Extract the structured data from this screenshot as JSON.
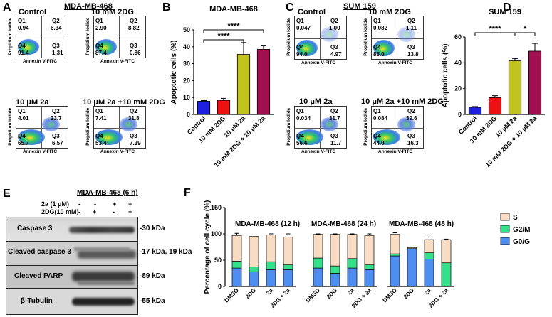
{
  "panel_letters": {
    "a": "A",
    "b": "B",
    "c": "C",
    "d": "D",
    "e": "E",
    "f": "F"
  },
  "flow": {
    "mdamb468": {
      "title": "MDA-MB-468",
      "x_label": "Annexin V-FITC",
      "y_label": "Propidium Iodide",
      "plots": [
        {
          "name": "Control",
          "q1": "0.94",
          "q2": "6.34",
          "q3": "1.31",
          "q4": "91.4",
          "q1_label": "Q1",
          "q2_label": "Q2",
          "q3_label": "Q3",
          "q4_label": "Q4"
        },
        {
          "name": "10 mM 2DG",
          "q1": "2.90",
          "q2": "8.82",
          "q3": "0.86",
          "q4": "87.4",
          "q1_label": "Q1",
          "q2_label": "Q2",
          "q3_label": "Q3",
          "q4_label": "Q4"
        },
        {
          "name": "10 μM 2a",
          "q1": "4.01",
          "q2": "23.7",
          "q3": "6.57",
          "q4": "65.7",
          "q1_label": "Q1",
          "q2_label": "Q2",
          "q3_label": "Q3",
          "q4_label": "Q4"
        },
        {
          "name": "10 μM 2a +10 mM 2DG",
          "q1": "7.41",
          "q2": "31.8",
          "q3": "7.39",
          "q4": "53.4",
          "q1_label": "Q1",
          "q2_label": "Q2",
          "q3_label": "Q3",
          "q4_label": "Q4"
        }
      ]
    },
    "sum159": {
      "title": "SUM 159",
      "x_label": "Annexin V-FITC",
      "y_label": "Propidium Iodide",
      "plots": [
        {
          "name": "Control",
          "q1": "0.047",
          "q2": "1.00",
          "q3": "4.97",
          "q4": "94.0",
          "q1_label": "Q1",
          "q2_label": "Q2",
          "q3_label": "Q3",
          "q4_label": "Q4"
        },
        {
          "name": "10 mM 2DG",
          "q1": "0.082",
          "q2": "1.11",
          "q3": "13.8",
          "q4": "85.0",
          "q1_label": "Q1",
          "q2_label": "Q2",
          "q3_label": "Q3",
          "q4_label": "Q4"
        },
        {
          "name": "10 μM 2a",
          "q1": "0.034",
          "q2": "31.7",
          "q3": "11.7",
          "q4": "56.6",
          "q1_label": "Q1",
          "q2_label": "Q2",
          "q3_label": "Q3",
          "q4_label": "Q4"
        },
        {
          "name": "10 μM 2a +10 mM 2DG",
          "q1": "0.084",
          "q2": "39.6",
          "q3": "16.3",
          "q4": "44.0",
          "q1_label": "Q1",
          "q2_label": "Q2",
          "q3_label": "Q3",
          "q4_label": "Q4"
        }
      ]
    }
  },
  "chart_data": [
    {
      "id": "B",
      "type": "bar",
      "title": "MDA-MB-468",
      "ylabel": "Apoptotic cells (%)",
      "xlabel": "",
      "categories": [
        "Control",
        "10 mM 2DG",
        "10 μM 2a",
        "10 mM 2DG + 10 μM 2a"
      ],
      "values": [
        7.8,
        8.3,
        35.5,
        38.5
      ],
      "errors": [
        0.4,
        1.2,
        7.0,
        2.0
      ],
      "colors": [
        "#1f1fe0",
        "#ee1111",
        "#c0c21e",
        "#a01050"
      ],
      "ylim": [
        0,
        50
      ],
      "yticks": [
        "0",
        "10",
        "20",
        "30",
        "40",
        "50"
      ],
      "significance": [
        "****",
        "****"
      ]
    },
    {
      "id": "D",
      "type": "bar",
      "title": "SUM 159",
      "ylabel": "Apoptotic cells (%)",
      "xlabel": "",
      "categories": [
        "Control",
        "10 mM 2DG",
        "10 μM 2a",
        "10 mM 2DG + 10 μM 2a"
      ],
      "values": [
        5.5,
        13.0,
        41.5,
        49.0
      ],
      "errors": [
        0.6,
        1.5,
        1.8,
        6.0
      ],
      "colors": [
        "#1f1fe0",
        "#ee1111",
        "#c0c21e",
        "#a01050"
      ],
      "ylim": [
        0,
        60
      ],
      "yticks": [
        "0",
        "20",
        "40",
        "60"
      ],
      "significance": [
        "****",
        "*"
      ]
    },
    {
      "id": "F",
      "type": "bar",
      "stacked": true,
      "ylabel": "Percentage of cell cycle (%)",
      "ylim": [
        0,
        150
      ],
      "yticks": [
        "0",
        "50",
        "100",
        "150"
      ],
      "groups": [
        {
          "label": "MDA-MB-468 (12 h)",
          "categories": [
            "DMSO",
            "2DG",
            "2a",
            "2DG + 2a"
          ],
          "g0g1": [
            35,
            28,
            32,
            32
          ],
          "g2m": [
            13,
            9,
            15,
            9
          ],
          "s": [
            49,
            58,
            51,
            53
          ],
          "total_err": [
            4,
            3,
            2,
            6
          ]
        },
        {
          "label": "MDA-MB-468 (24 h)",
          "categories": [
            "DMSO",
            "2DG",
            "2a",
            "2DG + 2a"
          ],
          "g0g1": [
            35,
            25,
            35,
            32
          ],
          "g2m": [
            19,
            14,
            18,
            9
          ],
          "s": [
            45,
            60,
            46,
            56
          ],
          "total_err": [
            1,
            1,
            1,
            3
          ]
        },
        {
          "label": "MDA-MB-468 (48 h)",
          "categories": [
            "DMSO",
            "2DG",
            "2a",
            "2DG + 2a"
          ],
          "g0g1": [
            58,
            72,
            52,
            0
          ],
          "g2m": [
            4,
            0,
            12,
            45
          ],
          "s": [
            37,
            2,
            25,
            44
          ],
          "total_err": [
            3,
            1,
            5,
            1
          ]
        }
      ],
      "series_names": [
        "S",
        "G2/M",
        "G0/G"
      ],
      "colors": {
        "s": "#f8dcc4",
        "g2m": "#35e08a",
        "g0g1": "#4d8ef0"
      }
    }
  ],
  "western": {
    "title": "MDA-MB-468 (6 h)",
    "cond1_label": "2a (1 μM)",
    "cond2_label": "2DG(10 mM)",
    "cond1_signs": [
      "-",
      "-",
      "+",
      "+"
    ],
    "cond2_signs": [
      "-",
      "+",
      "-",
      "+"
    ],
    "bands": [
      {
        "name": "Caspase 3",
        "kda": "-30 kDa"
      },
      {
        "name": "Cleaved caspase 3",
        "kda": "-17 kDa, 19 kDa"
      },
      {
        "name": "Cleaved PARP",
        "kda": "-89 kDa"
      },
      {
        "name": "β-Tubulin",
        "kda": "-55 kDa"
      }
    ]
  }
}
